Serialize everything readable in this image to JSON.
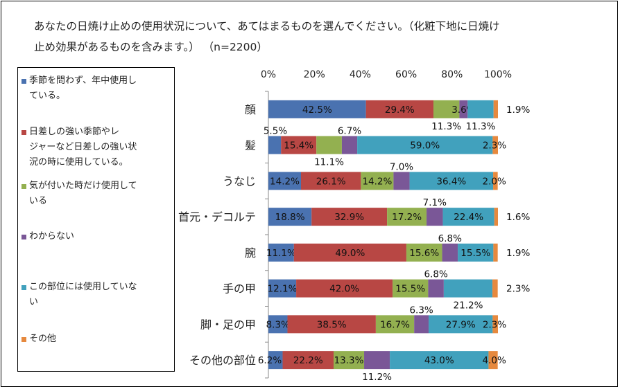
{
  "chart_data": {
    "type": "bar",
    "orientation": "horizontal",
    "stacked": true,
    "title": "あなたの日焼け止めの使用状況について、あてはまるものを選んでください。（化粧下地に日焼け止め効果があるものを含みます。） （n=2200）",
    "title_lines": [
      "あなたの日焼け止めの使用状況について、あてはまるものを選んでください。（化粧下地に日焼け",
      "止め効果があるものを含みます。） （n=2200）"
    ],
    "xlim": [
      0,
      100
    ],
    "x_ticks": [
      "0%",
      "20%",
      "40%",
      "60%",
      "80%",
      "100%"
    ],
    "legend_position": "left",
    "categories": [
      "顔",
      "髪",
      "うなじ",
      "首元・デコルテ",
      "腕",
      "手の甲",
      "脚・足の甲",
      "その他の部位"
    ],
    "series": [
      {
        "name": "季節を問わず、年中使用している。",
        "color": "#4a72b0",
        "values": [
          42.5,
          5.5,
          14.2,
          18.8,
          11.1,
          12.1,
          8.3,
          6.2
        ]
      },
      {
        "name": "日差しの強い季節やレジャーなど日差しの強い状況の時に使用している。",
        "color": "#b84744",
        "values": [
          29.4,
          15.4,
          26.1,
          32.9,
          49.0,
          42.0,
          38.5,
          22.2
        ]
      },
      {
        "name": "気が付いた時だけ使用している",
        "color": "#93b050",
        "values": [
          11.3,
          11.1,
          14.2,
          17.2,
          15.6,
          15.5,
          16.7,
          13.3
        ]
      },
      {
        "name": "わからない",
        "color": "#7a5797",
        "values": [
          3.6,
          6.7,
          7.0,
          7.1,
          6.8,
          6.8,
          6.3,
          11.2
        ]
      },
      {
        "name": "この部位には使用していない",
        "color": "#41a1bd",
        "values": [
          11.3,
          59.0,
          36.4,
          22.4,
          15.5,
          21.2,
          27.9,
          43.0
        ]
      },
      {
        "name": "その他",
        "color": "#e6893e",
        "values": [
          1.9,
          2.3,
          2.0,
          1.6,
          1.9,
          2.3,
          2.3,
          4.0
        ]
      }
    ],
    "data_labels": [
      [
        "42.5%",
        "29.4%",
        "11.3%",
        "3.6%",
        "11.3%",
        "1.9%"
      ],
      [
        "5.5%",
        "15.4%",
        "11.1%",
        "6.7%",
        "59.0%",
        "2.3%"
      ],
      [
        "14.2%",
        "26.1%",
        "14.2%",
        "7.0%",
        "36.4%",
        "2.0%"
      ],
      [
        "18.8%",
        "32.9%",
        "17.2%",
        "7.1%",
        "22.4%",
        "1.6%"
      ],
      [
        "11.1%",
        "49.0%",
        "15.6%",
        "6.8%",
        "15.5%",
        "1.9%"
      ],
      [
        "12.1%",
        "42.0%",
        "15.5%",
        "6.8%",
        "21.2%",
        "2.3%"
      ],
      [
        "8.3%",
        "38.5%",
        "16.7%",
        "6.3%",
        "27.9%",
        "2.3%"
      ],
      [
        "6.2%",
        "22.2%",
        "13.3%",
        "11.2%",
        "43.0%",
        "4.0%"
      ]
    ]
  },
  "legend": {
    "items": [
      {
        "lines": [
          "季節を問わず、年中使用し",
          "ている。"
        ]
      },
      {
        "lines": [
          "日差しの強い季節やレ",
          "ジャーなど日差しの強い状",
          "況の時に使用している。"
        ]
      },
      {
        "lines": [
          "気が付いた時だけ使用して",
          "いる"
        ]
      },
      {
        "lines": [
          "わからない"
        ]
      },
      {
        "lines": [
          "この部位には使用していな",
          "い"
        ]
      },
      {
        "lines": [
          "その他"
        ]
      }
    ]
  }
}
